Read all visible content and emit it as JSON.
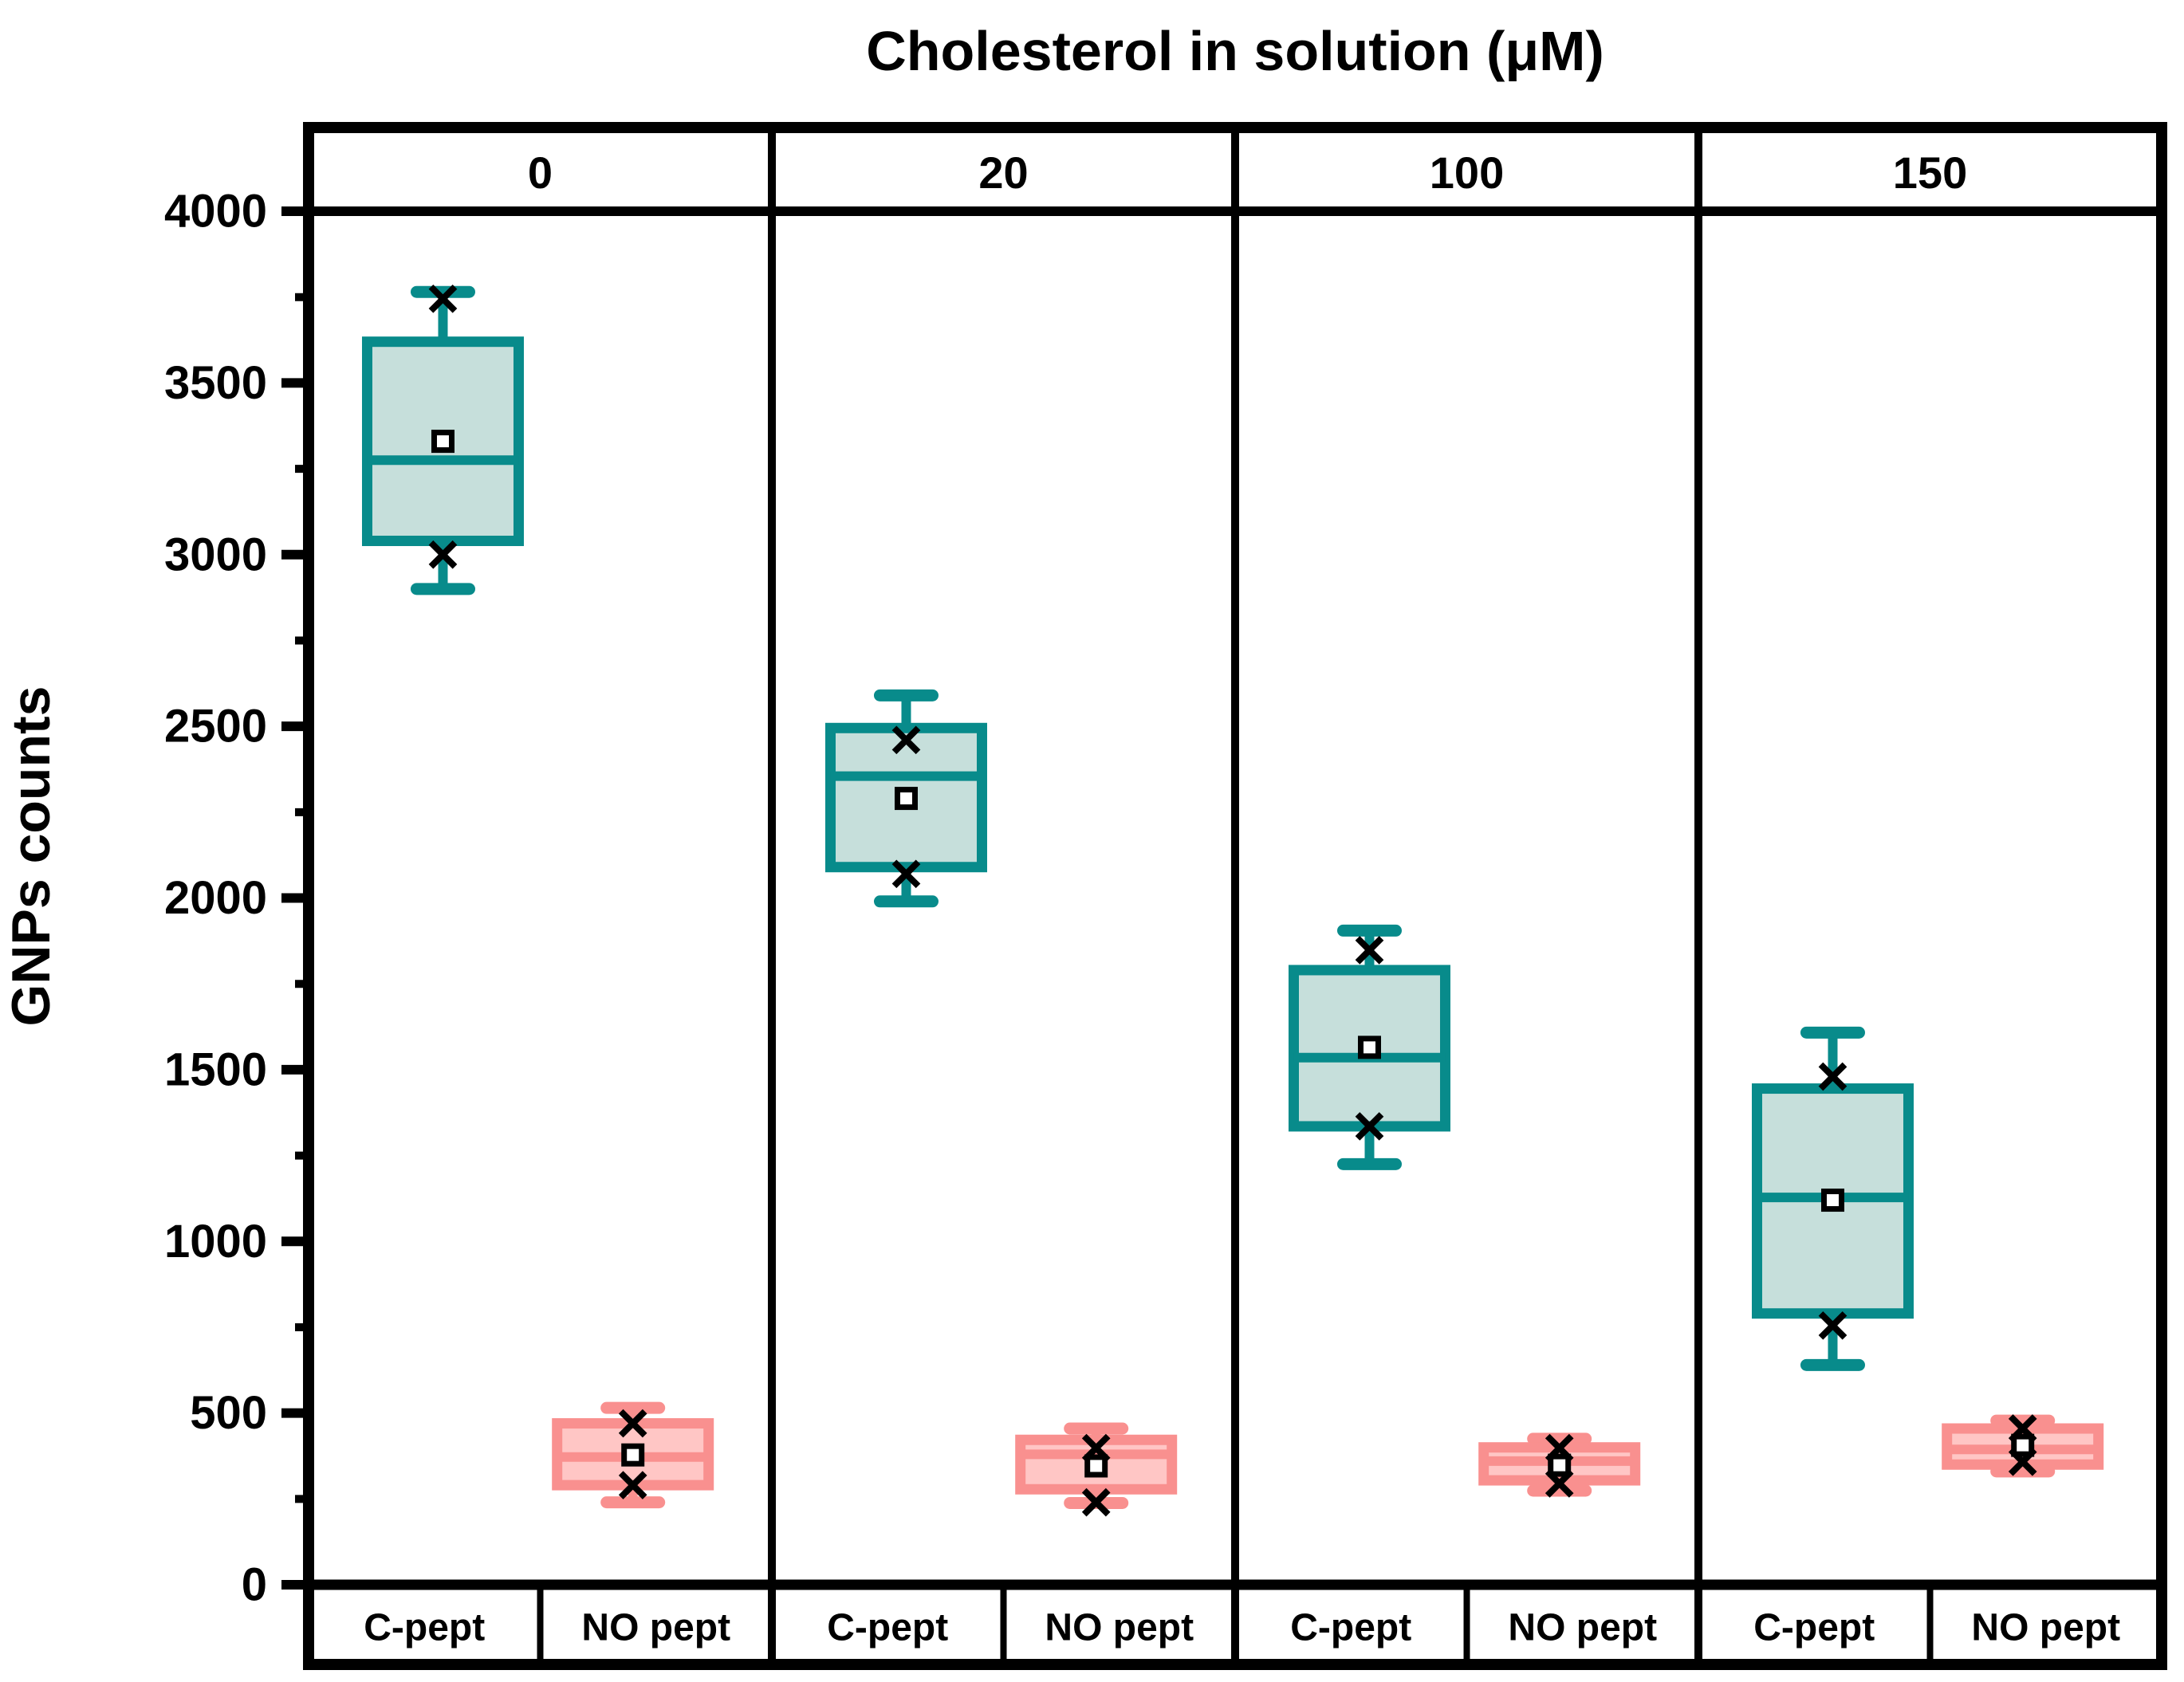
{
  "title": "Cholesterol in solution (μM)",
  "y_axis": {
    "label": "GNPs counts",
    "min": 0,
    "max": 4000,
    "major_step": 500,
    "minor_step": 250,
    "tick_labels": [
      "0",
      "500",
      "1000",
      "1500",
      "2000",
      "2500",
      "3000",
      "3500",
      "4000"
    ]
  },
  "x_band": {
    "labels": [
      "0",
      "20",
      "100",
      "150"
    ]
  },
  "bottom_band": {
    "labels": [
      "C-pept",
      "NO pept"
    ]
  },
  "colors": {
    "axis": "#000000",
    "c_pept_stroke": "#088B8B",
    "c_pept_fill": "#C6DFDB",
    "no_pept_stroke": "#F9908F",
    "no_pept_fill": "#FFC6C5",
    "marker": "#000000"
  },
  "chart_data": {
    "type": "box",
    "title": "Cholesterol in solution (μM)",
    "xlabel": "Cholesterol in solution (μM)",
    "ylabel": "GNPs counts",
    "ylim": [
      0,
      4000
    ],
    "grid": false,
    "legend_position": "none",
    "group_labels": [
      "C-pept",
      "NO pept"
    ],
    "panels": [
      {
        "x_label": "0",
        "boxes": [
          {
            "group": "C-pept",
            "whisker_low": 2900,
            "q1": 3040,
            "median": 3275,
            "q3": 3620,
            "whisker_high": 3765,
            "mean": 3330,
            "marker_low": 3000,
            "marker_high": 3745
          },
          {
            "group": "NO pept",
            "whisker_low": 240,
            "q1": 290,
            "median": 372,
            "q3": 470,
            "whisker_high": 515,
            "mean": 378,
            "marker_low": 290,
            "marker_high": 470
          }
        ]
      },
      {
        "x_label": "20",
        "boxes": [
          {
            "group": "C-pept",
            "whisker_low": 1990,
            "q1": 2090,
            "median": 2355,
            "q3": 2495,
            "whisker_high": 2590,
            "mean": 2290,
            "marker_low": 2070,
            "marker_high": 2460
          },
          {
            "group": "NO pept",
            "whisker_low": 238,
            "q1": 278,
            "median": 380,
            "q3": 422,
            "whisker_high": 455,
            "mean": 346,
            "marker_low": 240,
            "marker_high": 398
          }
        ]
      },
      {
        "x_label": "100",
        "boxes": [
          {
            "group": "C-pept",
            "whisker_low": 1225,
            "q1": 1335,
            "median": 1535,
            "q3": 1790,
            "whisker_high": 1905,
            "mean": 1565,
            "marker_low": 1335,
            "marker_high": 1848
          },
          {
            "group": "NO pept",
            "whisker_low": 274,
            "q1": 304,
            "median": 360,
            "q3": 400,
            "whisker_high": 425,
            "mean": 348,
            "marker_low": 295,
            "marker_high": 398
          }
        ]
      },
      {
        "x_label": "150",
        "boxes": [
          {
            "group": "C-pept",
            "whisker_low": 640,
            "q1": 790,
            "median": 1128,
            "q3": 1445,
            "whisker_high": 1608,
            "mean": 1120,
            "marker_low": 755,
            "marker_high": 1480
          },
          {
            "group": "NO pept",
            "whisker_low": 330,
            "q1": 350,
            "median": 394,
            "q3": 455,
            "whisker_high": 478,
            "mean": 406,
            "marker_low": 358,
            "marker_high": 455
          }
        ]
      }
    ]
  }
}
